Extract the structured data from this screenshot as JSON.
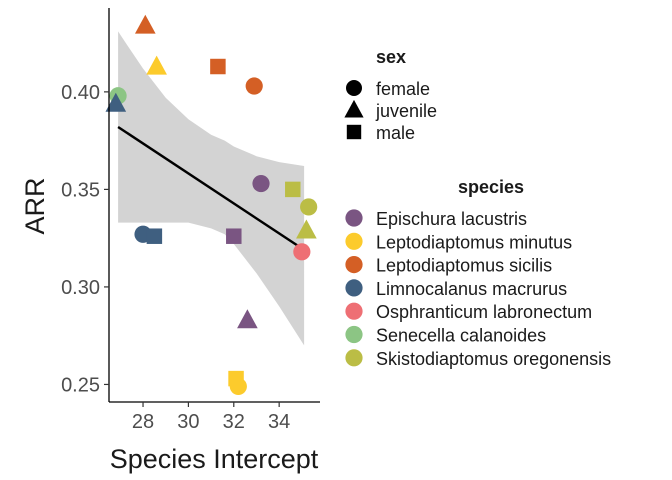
{
  "chart_data": {
    "type": "scatter",
    "xlabel": "Species Intercept",
    "ylabel": "ARR",
    "xlim": [
      26.5,
      35.8
    ],
    "ylim": [
      0.241,
      0.443
    ],
    "x_ticks": [
      28,
      30,
      32,
      34
    ],
    "x_tick_labels": [
      "28",
      "30",
      "32",
      "34"
    ],
    "y_ticks": [
      0.25,
      0.3,
      0.35,
      0.4
    ],
    "y_tick_labels": [
      "0.25",
      "0.30",
      "0.35",
      "0.40"
    ],
    "regression": {
      "x": [
        26.9,
        35.1
      ],
      "y": [
        0.382,
        0.319
      ],
      "color": "#000000"
    },
    "ribbon": {
      "x": [
        26.9,
        27.3,
        28.0,
        29.0,
        30.0,
        31.0,
        31.6,
        32.0,
        33.0,
        34.0,
        35.1
      ],
      "upper": [
        0.431,
        0.424,
        0.412,
        0.397,
        0.386,
        0.378,
        0.375,
        0.372,
        0.367,
        0.364,
        0.362
      ],
      "lower": [
        0.333,
        0.333,
        0.333,
        0.333,
        0.333,
        0.33,
        0.327,
        0.322,
        0.307,
        0.29,
        0.27
      ],
      "color": "#d3d3d3"
    },
    "legend_sex": {
      "title": "sex",
      "items": [
        {
          "label": "female",
          "shape": "circle"
        },
        {
          "label": "juvenile",
          "shape": "triangle"
        },
        {
          "label": "male",
          "shape": "square"
        }
      ]
    },
    "legend_species": {
      "title": "species",
      "items": [
        {
          "label": "Epischura lacustris",
          "color": "#7a5582"
        },
        {
          "label": "Leptodiaptomus minutus",
          "color": "#fccb2c"
        },
        {
          "label": "Leptodiaptomus sicilis",
          "color": "#d45f25"
        },
        {
          "label": "Limnocalanus macrurus",
          "color": "#3f5f80"
        },
        {
          "label": "Osphranticum labronectum",
          "color": "#ee6f74"
        },
        {
          "label": "Senecella calanoides",
          "color": "#8cc584"
        },
        {
          "label": "Skistodiaptomus oregonensis",
          "color": "#bbbd45"
        }
      ]
    },
    "points": [
      {
        "species": "Leptodiaptomus sicilis",
        "sex": "juvenile",
        "x": 28.1,
        "y": 0.434
      },
      {
        "species": "Leptodiaptomus minutus",
        "sex": "juvenile",
        "x": 28.6,
        "y": 0.413
      },
      {
        "species": "Leptodiaptomus sicilis",
        "sex": "male",
        "x": 31.3,
        "y": 0.413
      },
      {
        "species": "Leptodiaptomus sicilis",
        "sex": "female",
        "x": 32.9,
        "y": 0.403
      },
      {
        "species": "Senecella calanoides",
        "sex": "female",
        "x": 26.9,
        "y": 0.398
      },
      {
        "species": "Limnocalanus macrurus",
        "sex": "juvenile",
        "x": 26.8,
        "y": 0.394
      },
      {
        "species": "Epischura lacustris",
        "sex": "female",
        "x": 33.2,
        "y": 0.353
      },
      {
        "species": "Skistodiaptomus oregonensis",
        "sex": "male",
        "x": 34.6,
        "y": 0.35
      },
      {
        "species": "Skistodiaptomus oregonensis",
        "sex": "female",
        "x": 35.3,
        "y": 0.341
      },
      {
        "species": "Skistodiaptomus oregonensis",
        "sex": "juvenile",
        "x": 35.2,
        "y": 0.329
      },
      {
        "species": "Limnocalanus macrurus",
        "sex": "female",
        "x": 28.0,
        "y": 0.327
      },
      {
        "species": "Limnocalanus macrurus",
        "sex": "male",
        "x": 28.5,
        "y": 0.326
      },
      {
        "species": "Epischura lacustris",
        "sex": "male",
        "x": 32.0,
        "y": 0.326
      },
      {
        "species": "Osphranticum labronectum",
        "sex": "female",
        "x": 35.0,
        "y": 0.318
      },
      {
        "species": "Epischura lacustris",
        "sex": "juvenile",
        "x": 32.6,
        "y": 0.283
      },
      {
        "species": "Leptodiaptomus minutus",
        "sex": "male",
        "x": 32.1,
        "y": 0.253
      },
      {
        "species": "Leptodiaptomus minutus",
        "sex": "female",
        "x": 32.2,
        "y": 0.249
      }
    ]
  }
}
